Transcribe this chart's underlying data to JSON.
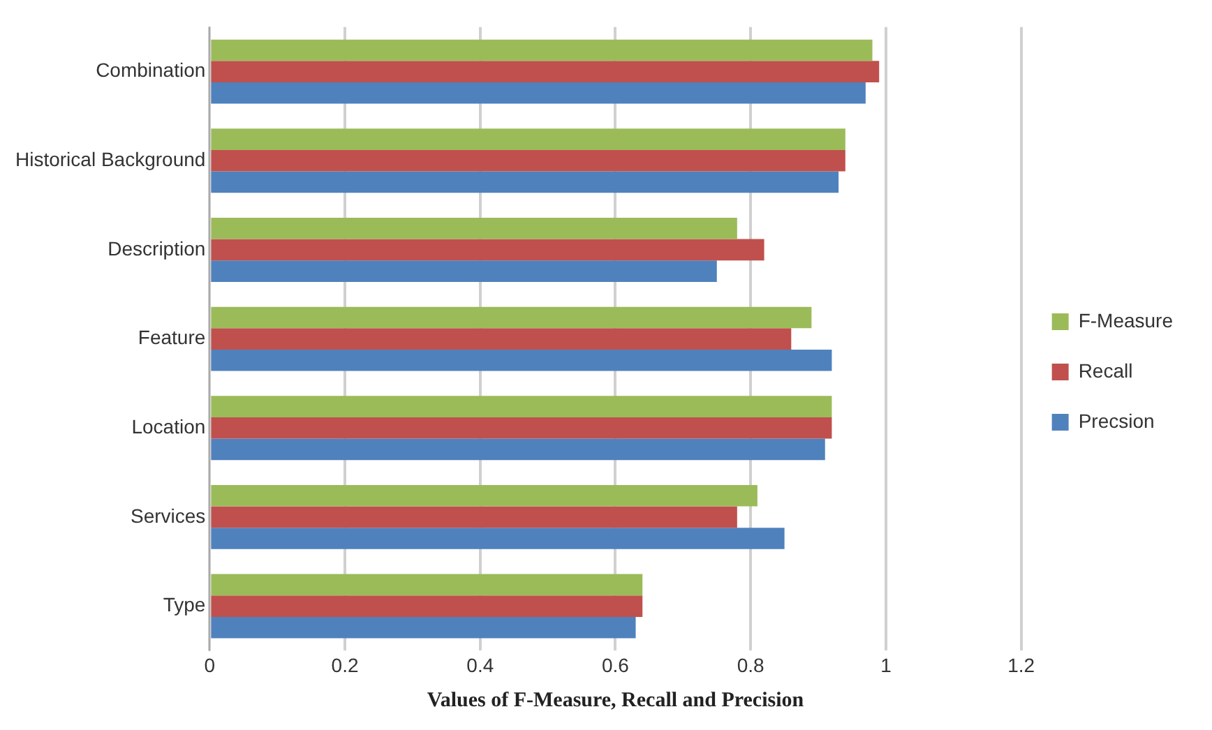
{
  "chart_data": {
    "type": "bar",
    "orientation": "horizontal",
    "xlabel": "Values of F-Measure, Recall and Precision",
    "categories": [
      "Combination",
      "Historical Background",
      "Description",
      "Feature",
      "Location",
      "Services",
      "Type"
    ],
    "series": [
      {
        "name": "F-Measure",
        "color": "#9bbb59",
        "values": [
          0.98,
          0.94,
          0.78,
          0.89,
          0.92,
          0.81,
          0.64
        ]
      },
      {
        "name": "Recall",
        "color": "#c0504d",
        "values": [
          0.99,
          0.94,
          0.82,
          0.86,
          0.92,
          0.78,
          0.64
        ]
      },
      {
        "name": "Precsion",
        "color": "#4f81bd",
        "values": [
          0.97,
          0.93,
          0.75,
          0.92,
          0.91,
          0.85,
          0.63
        ]
      }
    ],
    "xlim": [
      0,
      1.2
    ],
    "xticks": [
      0,
      0.2,
      0.4,
      0.6,
      0.8,
      1,
      1.2
    ],
    "grid": "x",
    "legend": "right"
  }
}
